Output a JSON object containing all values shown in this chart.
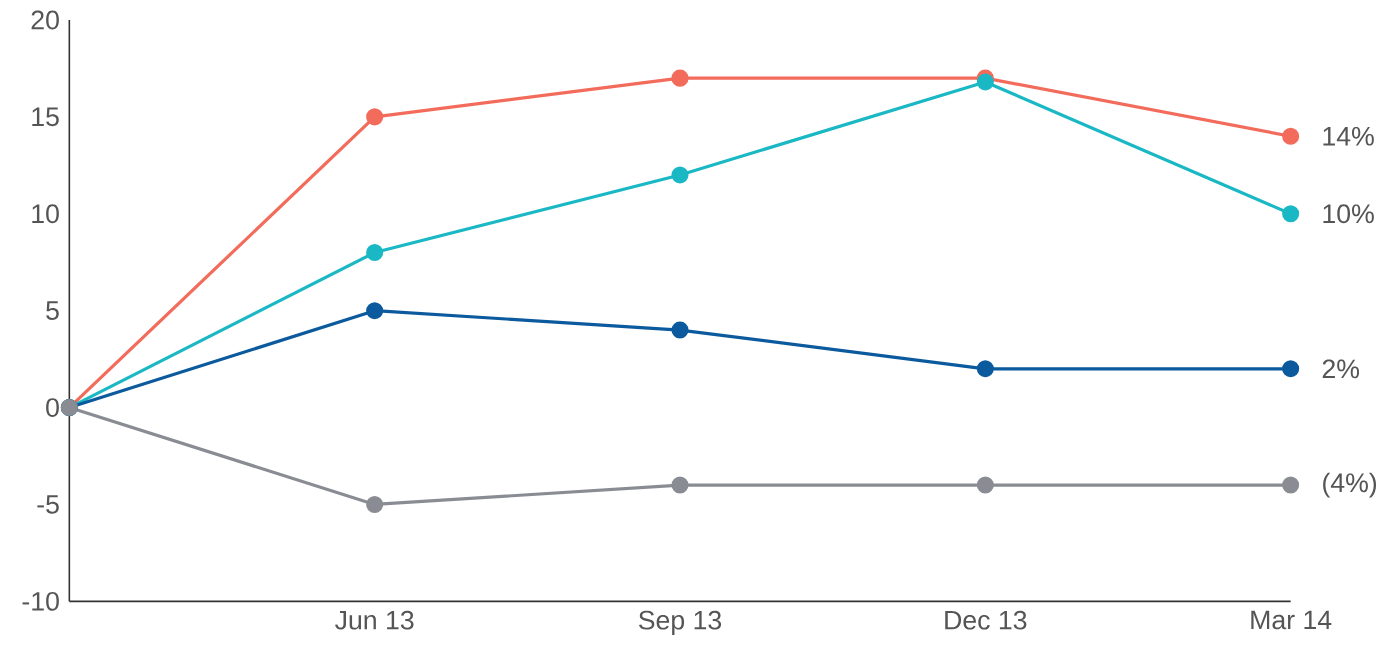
{
  "chart_data": {
    "type": "line",
    "categories": [
      null,
      "Jun 13",
      "Sep 13",
      "Dec 13",
      "Mar 14"
    ],
    "ylim": [
      -10,
      20
    ],
    "yticks": [
      -10,
      -5,
      0,
      5,
      10,
      15,
      20
    ],
    "grid": false,
    "marker": "circle",
    "line_style": "solid",
    "series": [
      {
        "color": "#f26b5b",
        "values": [
          0,
          15,
          17,
          17,
          14
        ],
        "value_labels": [
          null,
          null,
          null,
          null,
          "14%"
        ]
      },
      {
        "color": "#1ab8c4",
        "values": [
          0,
          8,
          12,
          16.8,
          10
        ],
        "value_labels": [
          null,
          null,
          null,
          null,
          "10%"
        ]
      },
      {
        "color": "#0b5a9e",
        "values": [
          0,
          5,
          4,
          2,
          2
        ],
        "value_labels": [
          null,
          null,
          null,
          null,
          "2%"
        ]
      },
      {
        "color": "#8a8c94",
        "values": [
          0,
          -5,
          -4,
          -4,
          -4
        ],
        "value_labels": [
          null,
          null,
          null,
          null,
          "(4%)"
        ]
      }
    ]
  }
}
